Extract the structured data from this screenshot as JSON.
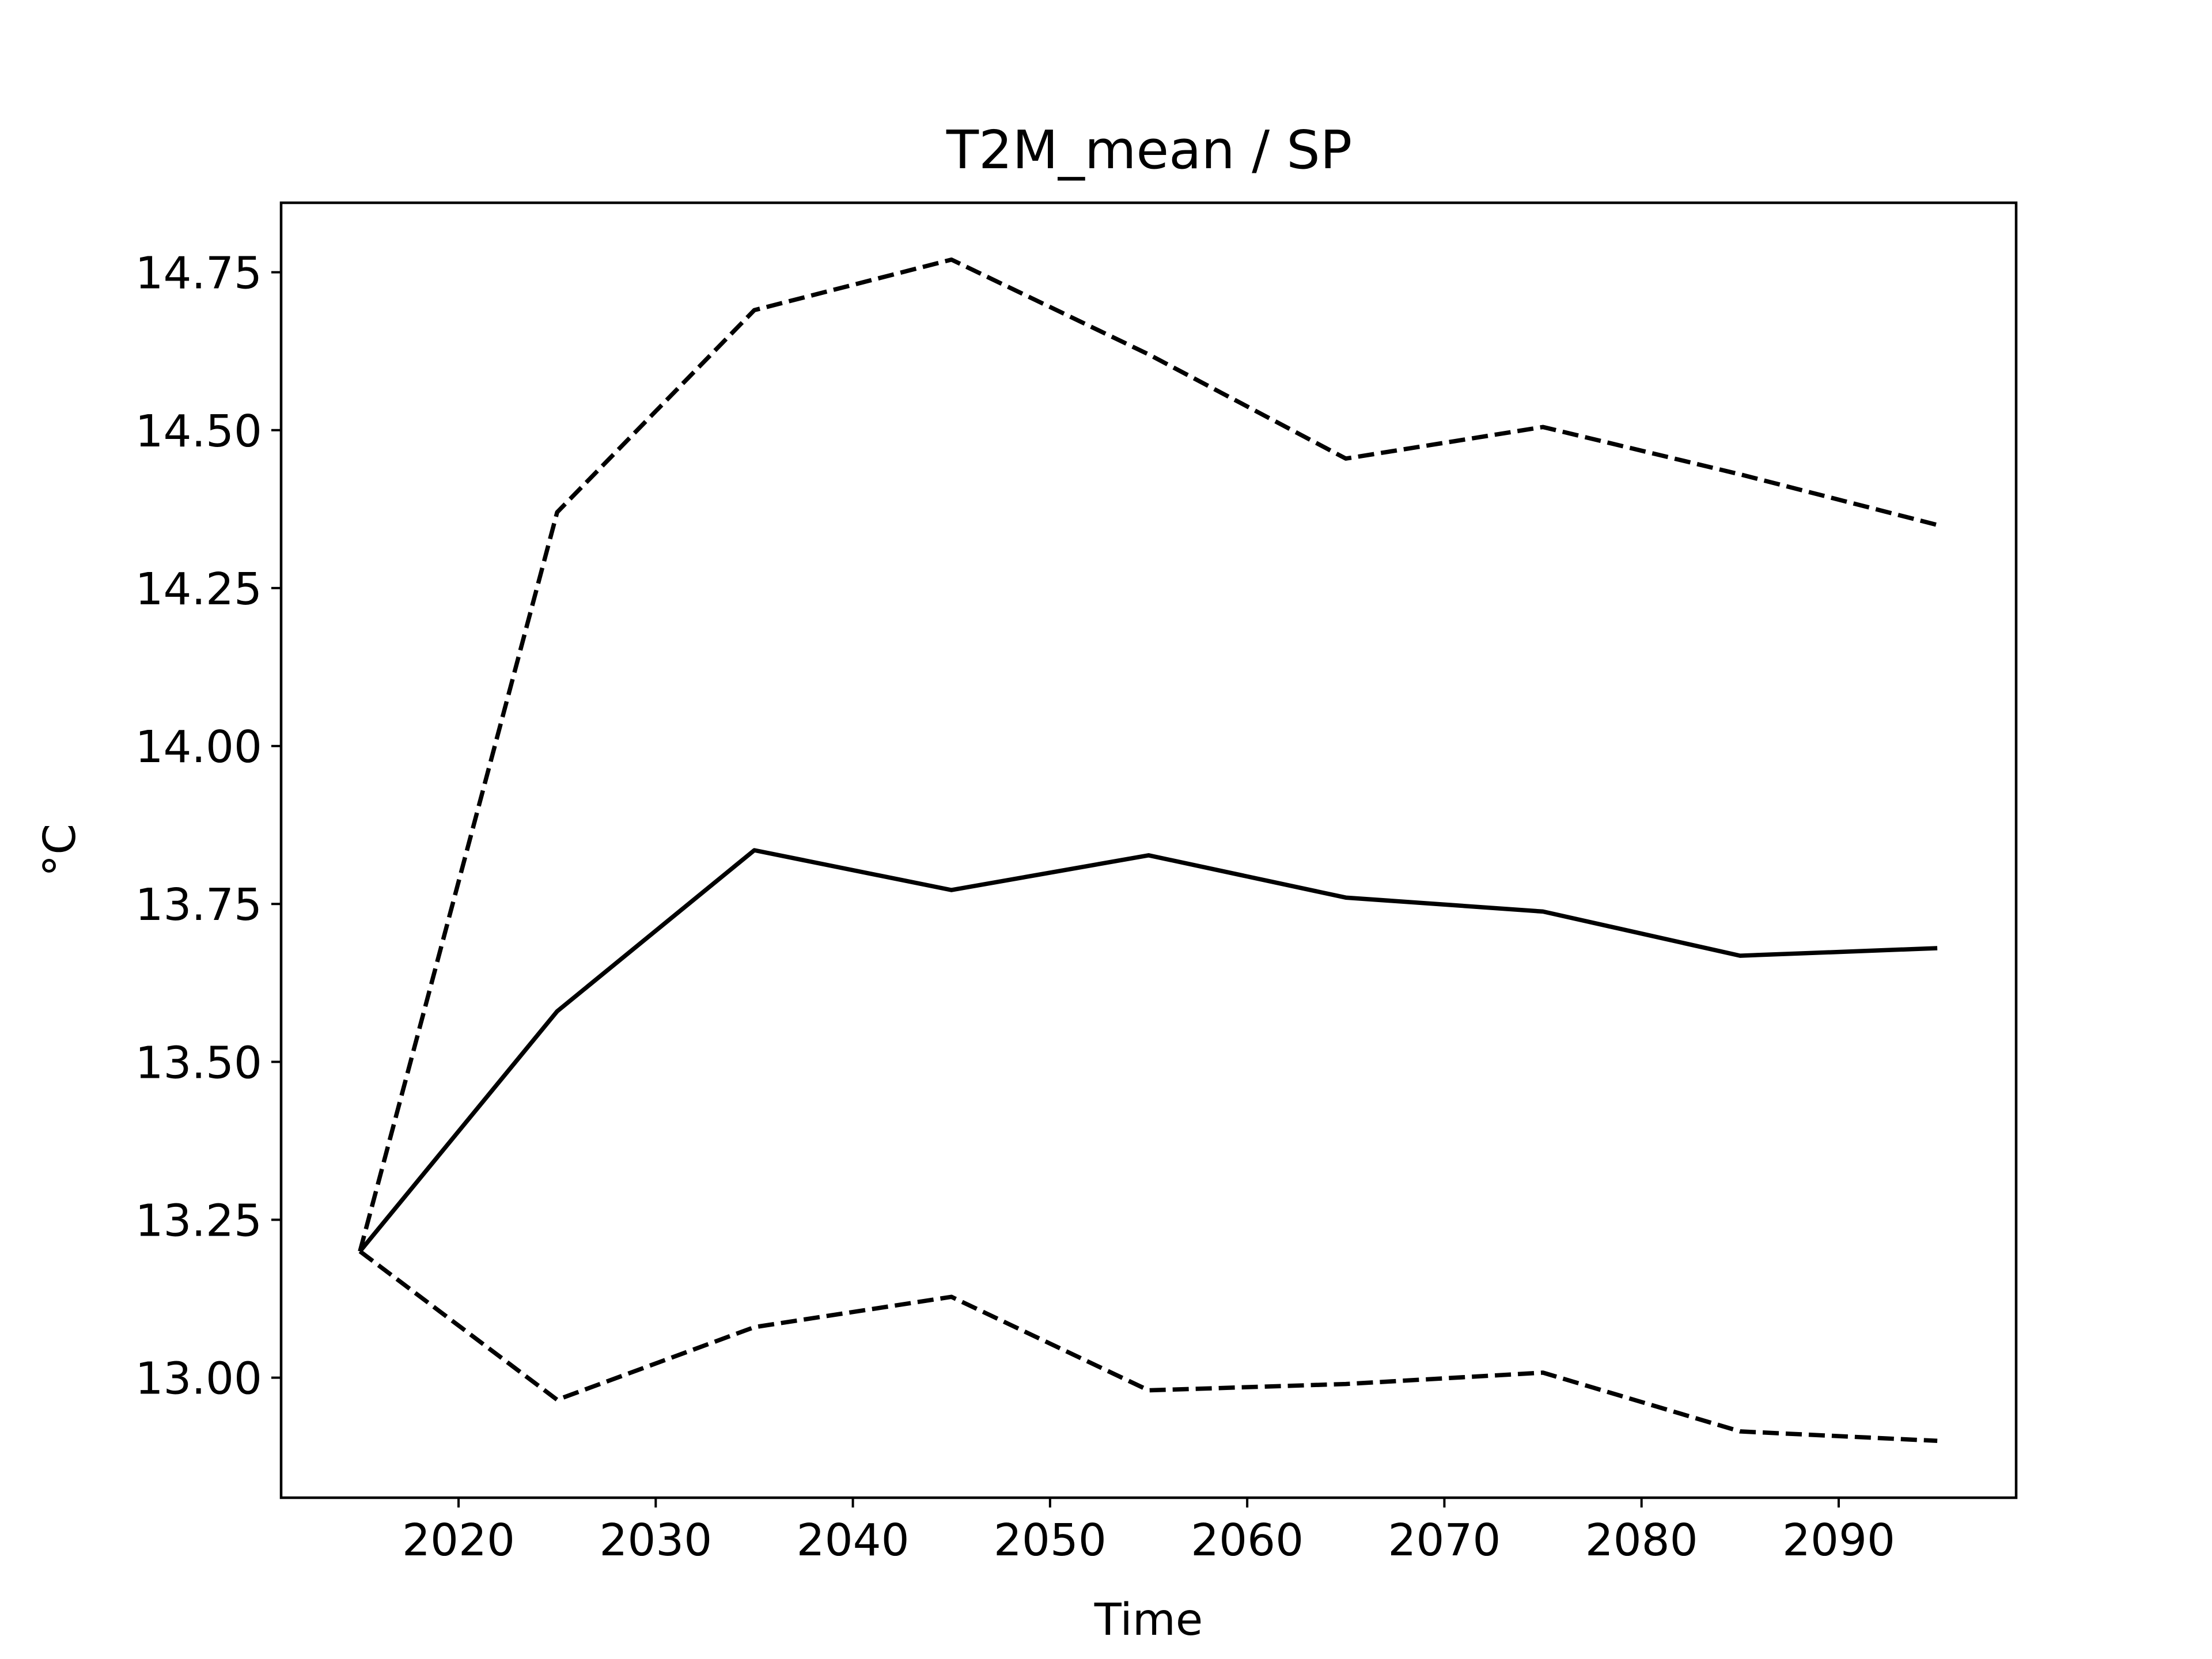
{
  "chart_data": {
    "type": "line",
    "title": "T2M_mean / SP",
    "xlabel": "Time",
    "ylabel": "°C",
    "xlim": [
      2011,
      2099
    ],
    "ylim": [
      12.81,
      14.86
    ],
    "xticks": [
      2020,
      2030,
      2040,
      2050,
      2060,
      2070,
      2080,
      2090
    ],
    "yticks": [
      13.0,
      13.25,
      13.5,
      13.75,
      14.0,
      14.25,
      14.5,
      14.75
    ],
    "ytick_labels": [
      "13.00",
      "13.25",
      "13.50",
      "13.75",
      "14.00",
      "14.25",
      "14.50",
      "14.75"
    ],
    "grid": false,
    "legend": "none",
    "x": [
      2015,
      2025,
      2035,
      2045,
      2055,
      2065,
      2075,
      2085,
      2095
    ],
    "series": [
      {
        "style": "dashed",
        "color": "#000000",
        "values": [
          13.2,
          14.37,
          14.69,
          14.77,
          14.62,
          14.455,
          14.505,
          14.43,
          14.35
        ]
      },
      {
        "style": "solid",
        "color": "#000000",
        "values": [
          13.2,
          13.58,
          13.835,
          13.772,
          13.827,
          13.76,
          13.738,
          13.668,
          13.68
        ]
      },
      {
        "style": "dashed",
        "color": "#000000",
        "values": [
          13.2,
          12.965,
          13.08,
          13.128,
          12.98,
          12.99,
          13.008,
          12.915,
          12.9
        ]
      }
    ]
  }
}
